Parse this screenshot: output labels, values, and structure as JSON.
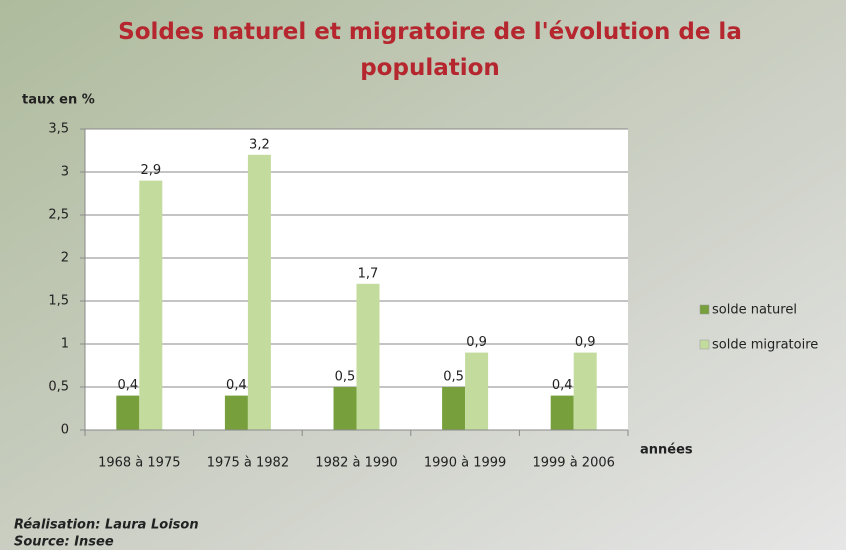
{
  "chart_data": {
    "type": "bar",
    "title": "Soldes naturel et migratoire de l'évolution de la population",
    "y_label": "taux en %",
    "x_label": "années",
    "footer": [
      "Réalisation: Laura Loison",
      "Source: Insee"
    ],
    "categories": [
      "1968 à 1975",
      "1975 à 1982",
      "1982 à 1990",
      "1990 à 1999",
      "1999 à 2006"
    ],
    "series": [
      {
        "name": "solde naturel",
        "color": "#77a03c",
        "values": [
          0.4,
          0.4,
          0.5,
          0.5,
          0.4
        ],
        "value_labels": [
          "0,4",
          "0,4",
          "0,5",
          "0,5",
          "0,4"
        ]
      },
      {
        "name": "solde migratoire",
        "color": "#c3dc9e",
        "values": [
          2.9,
          3.2,
          1.7,
          0.9,
          0.9
        ],
        "value_labels": [
          "2,9",
          "3,2",
          "1,7",
          "0,9",
          "0,9"
        ]
      }
    ],
    "ylim": [
      0,
      3.5
    ],
    "yticks": [
      0,
      {
        "value": 0.5,
        "label": "0,5"
      },
      1,
      {
        "value": 1.5,
        "label": "1,5"
      },
      2,
      {
        "value": 2.5,
        "label": "2,5"
      },
      3,
      {
        "value": 3.5,
        "label": "3,5"
      }
    ],
    "grid": true,
    "legend": "right"
  }
}
